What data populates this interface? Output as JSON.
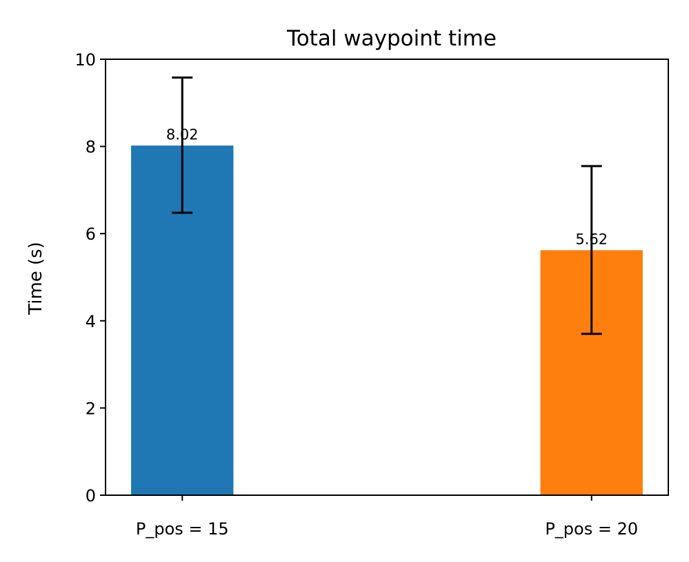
{
  "chart_data": {
    "type": "bar",
    "title": "Total waypoint time",
    "xlabel": "",
    "ylabel": "Time (s)",
    "categories": [
      "P_pos = 15",
      "P_pos = 20"
    ],
    "values": [
      8.02,
      5.62
    ],
    "value_labels": [
      "8.02",
      "5.62"
    ],
    "error": [
      {
        "low": 6.48,
        "high": 9.58
      },
      {
        "low": 3.7,
        "high": 7.55
      }
    ],
    "bar_colors": [
      "#1f77b4",
      "#ff7f0e"
    ],
    "ylim": [
      0,
      10
    ],
    "yticks": [
      0,
      2,
      4,
      6,
      8,
      10
    ],
    "ytick_labels": [
      "0",
      "2",
      "4",
      "6",
      "8",
      "10"
    ],
    "grid": false,
    "legend": "none"
  }
}
